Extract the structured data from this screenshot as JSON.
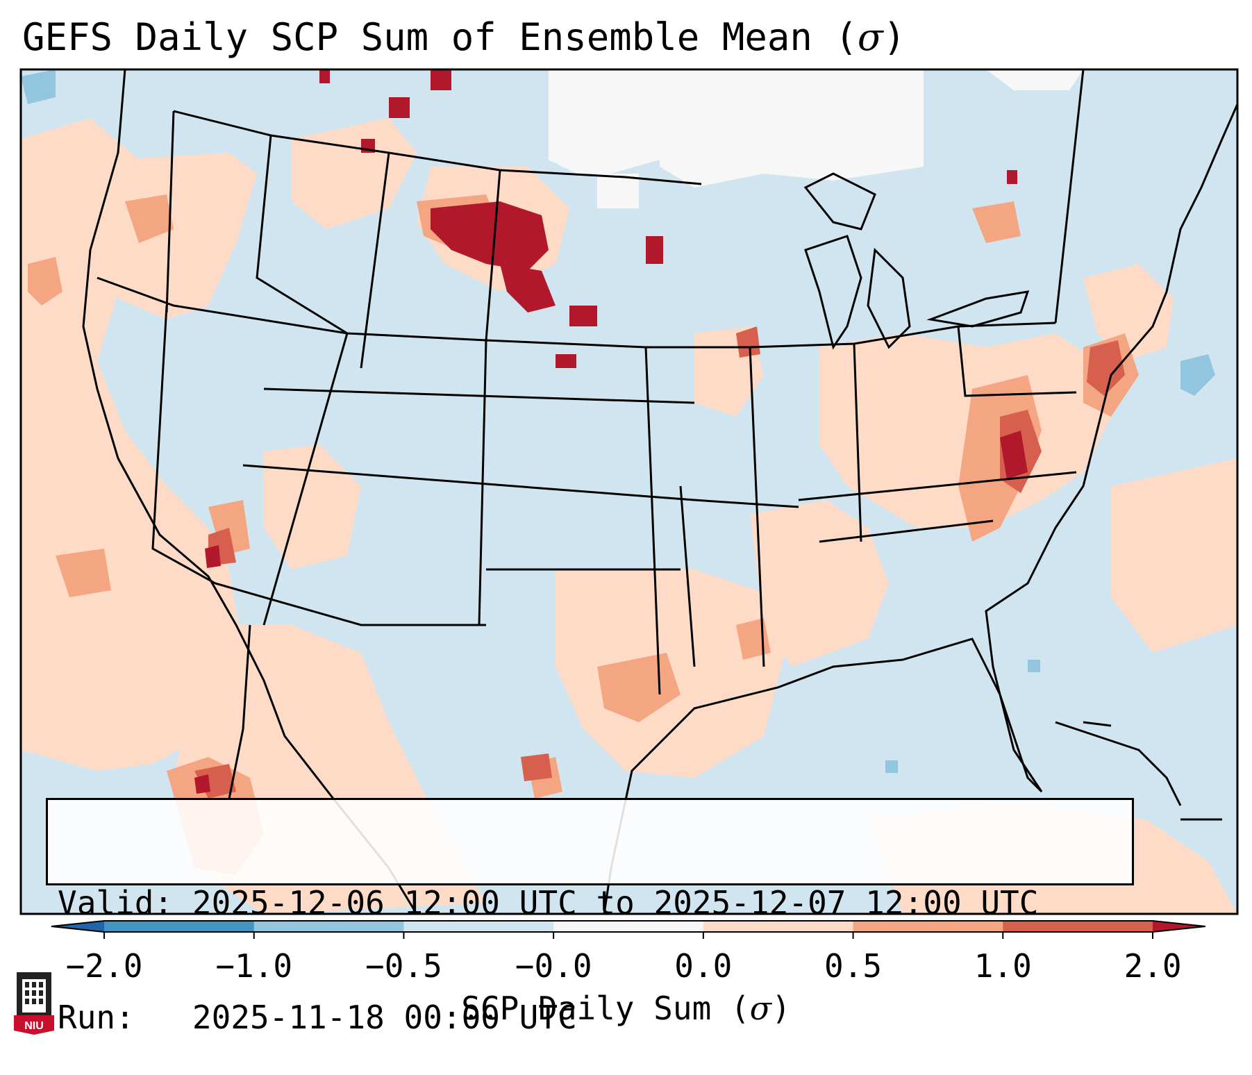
{
  "title": {
    "main": "GEFS Daily SCP Sum of Ensemble Mean (",
    "symbol": "σ",
    "close": ")"
  },
  "info": {
    "valid_label": "Valid:",
    "valid_text": "2025-12-06 12:00 UTC to 2025-12-07 12:00 UTC",
    "run_label": "Run:",
    "run_text": "2025-11-18 00:00 UTC"
  },
  "colorbar": {
    "title": "SCP Daily Sum (",
    "title_symbol": "σ",
    "title_close": ")",
    "tick_labels": [
      "−2.0",
      "−1.0",
      "−0.5",
      "−0.0",
      "0.0",
      "0.5",
      "1.0",
      "2.0"
    ],
    "bins": [
      {
        "range": "-2.0 to -1.0",
        "color": "#4393c3"
      },
      {
        "range": "-1.0 to -0.5",
        "color": "#92c5de"
      },
      {
        "range": "-0.5 to -0.0",
        "color": "#d1e5f0"
      },
      {
        "range": "-0.0 to 0.0",
        "color": "#f7f7f7"
      },
      {
        "range": "0.0 to 0.5",
        "color": "#fddbc7"
      },
      {
        "range": "0.5 to 1.0",
        "color": "#f4a582"
      },
      {
        "range": "1.0 to 2.0",
        "color": "#d6604d"
      }
    ],
    "under_color": "#2166ac",
    "over_color": "#b2182b"
  },
  "chart_data": {
    "type": "heatmap",
    "title": "GEFS Daily SCP Sum of Ensemble Mean (σ)",
    "variable": "SCP Daily Sum (σ)",
    "region": "Contiguous United States",
    "legend_levels": [
      -2.0,
      -1.0,
      -0.5,
      -0.0,
      0.0,
      0.5,
      1.0,
      2.0
    ],
    "highlights": [
      {
        "area": "Southeast Montana / western South Dakota",
        "category": "> 2.0"
      },
      {
        "area": "Virginia / North Carolina piedmont",
        "category": "1.0 to 2.0"
      },
      {
        "area": "Southern California / Arizona border",
        "category": "1.0 to 2.0"
      },
      {
        "area": "Mid-Atlantic coast / Delaware-New Jersey",
        "category": "1.0 to 2.0"
      },
      {
        "area": "Gulf Coast / East Texas",
        "category": "0.5 to 1.0"
      },
      {
        "area": "Northern Plains / Canada border",
        "category": "-0.0 to 0.0"
      }
    ]
  },
  "logo": {
    "text": "NIU"
  }
}
